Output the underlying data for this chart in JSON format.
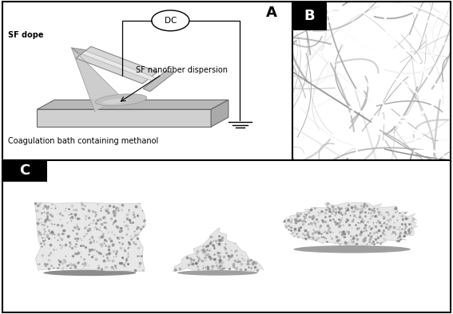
{
  "figure_width": 5.67,
  "figure_height": 3.94,
  "dpi": 100,
  "bg_white": "#ffffff",
  "bg_light_gray": "#f0f0f0",
  "bg_dark": "#111111",
  "panel_A_bg": "#f8f8f8",
  "panel_B_bg": "#2a2a2a",
  "panel_C_bg": "#181818",
  "label_A": "A",
  "label_B": "B",
  "label_C": "C",
  "label_fontsize": 13,
  "text_sf_dope": "SF dope",
  "text_nanofiber": "SF nanofiber dispersion",
  "text_coag": "Coagulation bath containing methanol",
  "text_fontsize": 7,
  "border_lw": 1.5
}
